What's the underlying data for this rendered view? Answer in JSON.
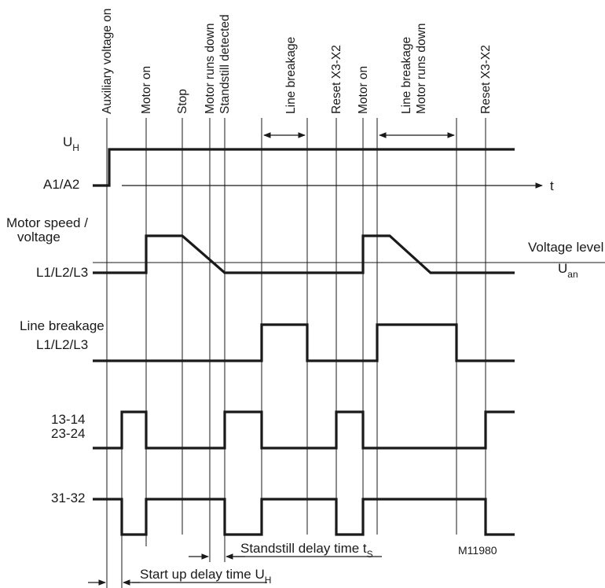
{
  "events": [
    {
      "id": "aux",
      "label": "Auxiliary voltage on"
    },
    {
      "id": "motor_on_1",
      "label": "Motor on"
    },
    {
      "id": "stop",
      "label": "Stop"
    },
    {
      "id": "runs_down",
      "label": "Motor runs down"
    },
    {
      "id": "standstill",
      "label": "Standstill detected"
    },
    {
      "id": "line_break_1",
      "label": "Line breakage"
    },
    {
      "id": "reset_1",
      "label": "Reset X3-X2"
    },
    {
      "id": "motor_on_2",
      "label": "Motor on"
    },
    {
      "id": "line_break_2a",
      "label": "Line breakage"
    },
    {
      "id": "line_break_2b",
      "label": "Motor runs down"
    },
    {
      "id": "reset_2",
      "label": "Reset X3-X2"
    }
  ],
  "signals": {
    "uh": {
      "main": "U",
      "sub": "H"
    },
    "a1a2": "A1/A2",
    "time_axis": "t",
    "motor_speed": {
      "line1": "Motor speed /",
      "line2": "voltage",
      "line3": "L1/L2/L3"
    },
    "voltage_level": {
      "line1": "Voltage level",
      "main": "U",
      "sub": "an"
    },
    "line_breakage": {
      "line1": "Line breakage",
      "line2": "L1/L2/L3"
    },
    "contacts_no": {
      "line1": "13-14",
      "line2": "23-24"
    },
    "contacts_nc": "31-32"
  },
  "timing": {
    "standstill_delay": {
      "main": "Standstill delay time t",
      "sub": "S"
    },
    "startup_delay": {
      "main": "Start up delay time U",
      "sub": "H"
    }
  },
  "drawing_code": "M11980"
}
